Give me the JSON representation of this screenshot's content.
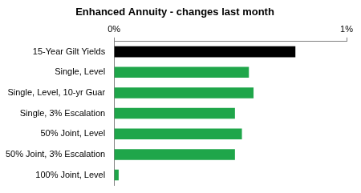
{
  "chart_data": {
    "type": "bar",
    "orientation": "horizontal",
    "title": "Enhanced Annuity - changes last month",
    "categories": [
      "15-Year Gilt Yields",
      "Single, Level",
      "Single, Level, 10-yr Guar",
      "Single, 3% Escalation",
      "50% Joint, Level",
      "50% Joint, 3% Escalation",
      "100% Joint, Level"
    ],
    "values": [
      0.78,
      0.58,
      0.6,
      0.52,
      0.55,
      0.52,
      0.02
    ],
    "colors": [
      "#000000",
      "#1fa64a",
      "#1fa64a",
      "#1fa64a",
      "#1fa64a",
      "#1fa64a",
      "#1fa64a"
    ],
    "xlim": [
      0,
      1
    ],
    "xticks": [
      {
        "value": 0,
        "label": "0%"
      },
      {
        "value": 1,
        "label": "1%"
      }
    ],
    "grid": false
  }
}
